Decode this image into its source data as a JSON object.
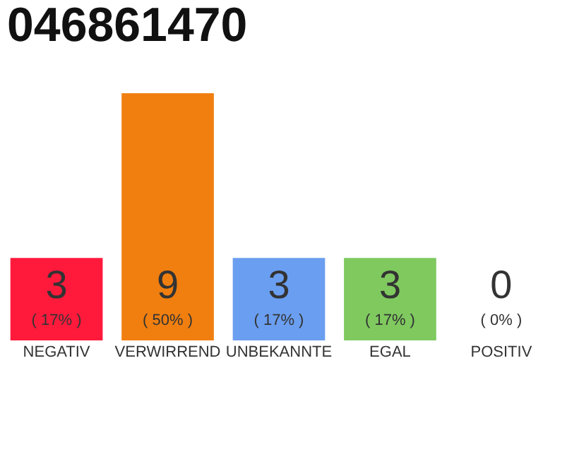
{
  "chart_data": {
    "type": "bar",
    "title": "046861470",
    "categories": [
      "NEGATIV",
      "VERWIRREND",
      "UNBEKANNTE",
      "EGAL",
      "POSITIV"
    ],
    "values": [
      3,
      9,
      3,
      3,
      0
    ],
    "colors": [
      "#ff1a3c",
      "#f07f0f",
      "#6a9ef0",
      "#7fc95f",
      "#cccccc"
    ],
    "data_labels": true,
    "annotations": [
      "( 17% )",
      "( 50% )",
      "( 17% )",
      "( 17% )",
      "( 0% )"
    ],
    "ylim": [
      0,
      9
    ],
    "tick_labels": "x"
  }
}
